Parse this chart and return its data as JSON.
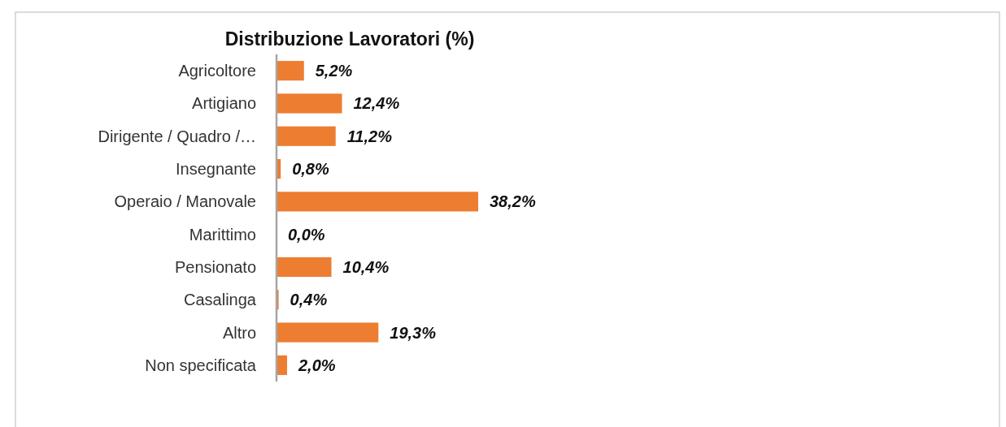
{
  "chart_data": {
    "type": "bar",
    "orientation": "horizontal",
    "title": "Distribuzione Lavoratori  (%)",
    "categories": [
      "Agricoltore",
      "Artigiano",
      "Dirigente / Quadro /…",
      "Insegnante",
      "Operaio / Manovale",
      "Marittimo",
      "Pensionato",
      "Casalinga",
      "Altro",
      "Non specificata"
    ],
    "values": [
      5.2,
      12.4,
      11.2,
      0.8,
      38.2,
      0.0,
      10.4,
      0.4,
      19.3,
      2.0
    ],
    "value_labels": [
      "5,2%",
      "12,4%",
      "11,2%",
      "0,8%",
      "38,2%",
      "0,0%",
      "10,4%",
      "0,4%",
      "19,3%",
      "2,0%"
    ],
    "color": "#ed7d31"
  }
}
